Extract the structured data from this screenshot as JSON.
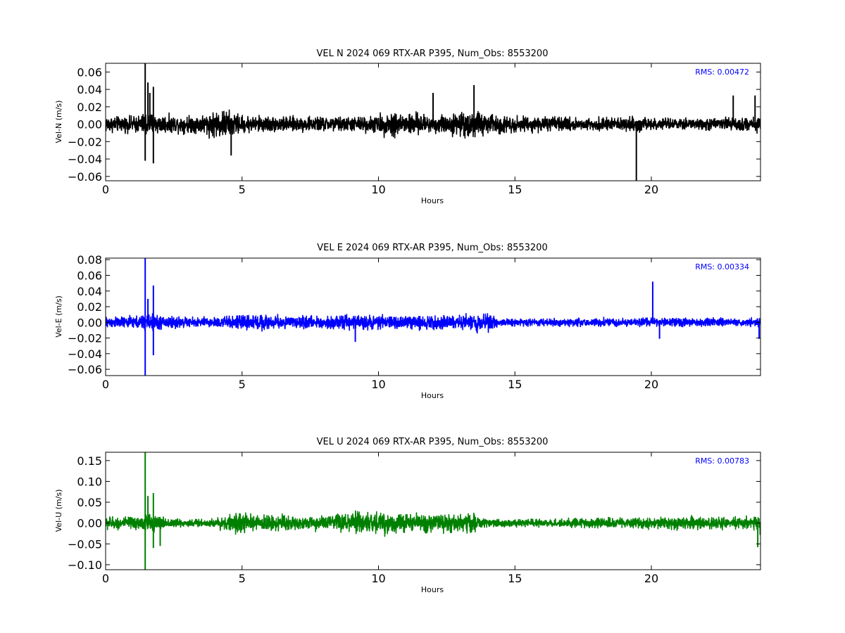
{
  "chart_data": [
    {
      "type": "line",
      "title": "VEL N 2024 069 RTX-AR  P395, Num_Obs: 8553200",
      "xlabel": "Hours",
      "ylabel": "Vel-N (m/s)",
      "xlim": [
        0,
        24
      ],
      "ylim": [
        -0.065,
        0.07
      ],
      "xticks": [
        0,
        5,
        10,
        15,
        20
      ],
      "yticks": [
        -0.06,
        -0.04,
        -0.02,
        0.0,
        0.02,
        0.04,
        0.06
      ],
      "ytick_labels": [
        "−0.06",
        "−0.04",
        "−0.02",
        "0.00",
        "0.02",
        "0.04",
        "0.06"
      ],
      "color": "#000000",
      "annotation": "RMS:  0.00472",
      "annotation_color": "#0000ff",
      "grid": false,
      "series": [
        {
          "envelope": {
            "x": [
              0,
              0.5,
              1.0,
              1.4,
              1.5,
              1.8,
              2.5,
              3.5,
              4.0,
              4.4,
              5.0,
              6.0,
              7.0,
              8.0,
              9.0,
              10.0,
              10.4,
              11.0,
              12.0,
              13.0,
              13.5,
              14.0,
              15.0,
              16.0,
              17.0,
              18.0,
              19.0,
              19.8,
              20.0,
              21.0,
              22.0,
              23.0,
              24.0
            ],
            "amplitude": [
              0.013,
              0.011,
              0.012,
              0.016,
              0.02,
              0.015,
              0.012,
              0.014,
              0.02,
              0.022,
              0.013,
              0.012,
              0.011,
              0.011,
              0.011,
              0.013,
              0.02,
              0.018,
              0.013,
              0.017,
              0.021,
              0.016,
              0.012,
              0.011,
              0.01,
              0.009,
              0.01,
              0.012,
              0.008,
              0.008,
              0.009,
              0.01,
              0.011
            ]
          },
          "spikes": [
            {
              "x": 1.45,
              "y": 0.07
            },
            {
              "x": 1.45,
              "y": -0.042
            },
            {
              "x": 1.55,
              "y": 0.048
            },
            {
              "x": 1.62,
              "y": 0.036
            },
            {
              "x": 1.75,
              "y": 0.043
            },
            {
              "x": 1.75,
              "y": -0.045
            },
            {
              "x": 4.6,
              "y": -0.036
            },
            {
              "x": 12.0,
              "y": 0.036
            },
            {
              "x": 13.5,
              "y": 0.045
            },
            {
              "x": 19.45,
              "y": -0.065
            },
            {
              "x": 23.0,
              "y": 0.033
            },
            {
              "x": 23.8,
              "y": 0.033
            }
          ]
        }
      ]
    },
    {
      "type": "line",
      "title": "VEL E 2024 069 RTX-AR  P395, Num_Obs: 8553200",
      "xlabel": "Hours",
      "ylabel": "Vel-E (m/s)",
      "xlim": [
        0,
        24
      ],
      "ylim": [
        -0.068,
        0.082
      ],
      "xticks": [
        0,
        5,
        10,
        15,
        20
      ],
      "yticks": [
        -0.06,
        -0.04,
        -0.02,
        0.0,
        0.02,
        0.04,
        0.06,
        0.08
      ],
      "ytick_labels": [
        "−0.06",
        "−0.04",
        "−0.02",
        "0.00",
        "0.02",
        "0.04",
        "0.06",
        "0.08"
      ],
      "color": "#0000ff",
      "annotation": "RMS:  0.00334",
      "annotation_color": "#0000ff",
      "grid": false,
      "series": [
        {
          "envelope": {
            "x": [
              0,
              0.5,
              1.0,
              1.4,
              1.5,
              2.0,
              2.5,
              3.0,
              4.0,
              5.0,
              5.5,
              6.0,
              7.0,
              8.0,
              9.0,
              10.0,
              11.0,
              12.0,
              13.0,
              13.6,
              14.2,
              14.4,
              15.0,
              16.0,
              17.0,
              18.0,
              19.0,
              20.0,
              21.0,
              22.0,
              23.0,
              24.0
            ],
            "amplitude": [
              0.01,
              0.009,
              0.01,
              0.013,
              0.015,
              0.012,
              0.011,
              0.008,
              0.009,
              0.012,
              0.014,
              0.012,
              0.01,
              0.01,
              0.012,
              0.011,
              0.011,
              0.011,
              0.012,
              0.015,
              0.013,
              0.006,
              0.006,
              0.006,
              0.007,
              0.007,
              0.007,
              0.007,
              0.007,
              0.007,
              0.006,
              0.007
            ]
          },
          "spikes": [
            {
              "x": 1.45,
              "y": 0.082
            },
            {
              "x": 1.45,
              "y": -0.068
            },
            {
              "x": 1.55,
              "y": 0.03
            },
            {
              "x": 1.75,
              "y": 0.047
            },
            {
              "x": 1.75,
              "y": -0.042
            },
            {
              "x": 9.15,
              "y": -0.025
            },
            {
              "x": 20.05,
              "y": 0.052
            },
            {
              "x": 20.3,
              "y": -0.021
            },
            {
              "x": 23.95,
              "y": -0.021
            }
          ]
        }
      ]
    },
    {
      "type": "line",
      "title": "VEL U 2024 069 RTX-AR  P395, Num_Obs: 8553200",
      "xlabel": "Hours",
      "ylabel": "Vel-U (m/s)",
      "xlim": [
        0,
        24
      ],
      "ylim": [
        -0.112,
        0.17
      ],
      "xticks": [
        0,
        5,
        10,
        15,
        20
      ],
      "yticks": [
        -0.1,
        -0.05,
        0.0,
        0.05,
        0.1,
        0.15
      ],
      "ytick_labels": [
        "−0.10",
        "−0.05",
        "0.00",
        "0.05",
        "0.10",
        "0.15"
      ],
      "color": "#008000",
      "annotation": "RMS:  0.00783",
      "annotation_color": "#0000ff",
      "grid": false,
      "series": [
        {
          "envelope": {
            "x": [
              0,
              0.5,
              1.0,
              1.4,
              1.5,
              2.0,
              2.5,
              3.0,
              4.0,
              4.5,
              5.0,
              5.5,
              6.0,
              6.5,
              7.0,
              8.0,
              9.0,
              9.5,
              10.0,
              11.0,
              12.0,
              13.0,
              13.5,
              13.7,
              14.0,
              15.0,
              16.0,
              17.0,
              18.0,
              19.0,
              19.9,
              20.0,
              21.0,
              22.0,
              23.0,
              23.6,
              24.0
            ],
            "amplitude": [
              0.022,
              0.018,
              0.02,
              0.028,
              0.032,
              0.02,
              0.015,
              0.012,
              0.015,
              0.025,
              0.032,
              0.022,
              0.025,
              0.03,
              0.02,
              0.022,
              0.035,
              0.038,
              0.034,
              0.03,
              0.028,
              0.03,
              0.032,
              0.014,
              0.014,
              0.012,
              0.012,
              0.013,
              0.016,
              0.016,
              0.02,
              0.016,
              0.02,
              0.018,
              0.016,
              0.022,
              0.03
            ]
          },
          "spikes": [
            {
              "x": 1.45,
              "y": 0.17
            },
            {
              "x": 1.45,
              "y": -0.112
            },
            {
              "x": 1.55,
              "y": 0.065
            },
            {
              "x": 1.75,
              "y": 0.072
            },
            {
              "x": 1.75,
              "y": -0.06
            },
            {
              "x": 2.0,
              "y": -0.055
            },
            {
              "x": 23.9,
              "y": -0.058
            }
          ]
        }
      ]
    }
  ]
}
